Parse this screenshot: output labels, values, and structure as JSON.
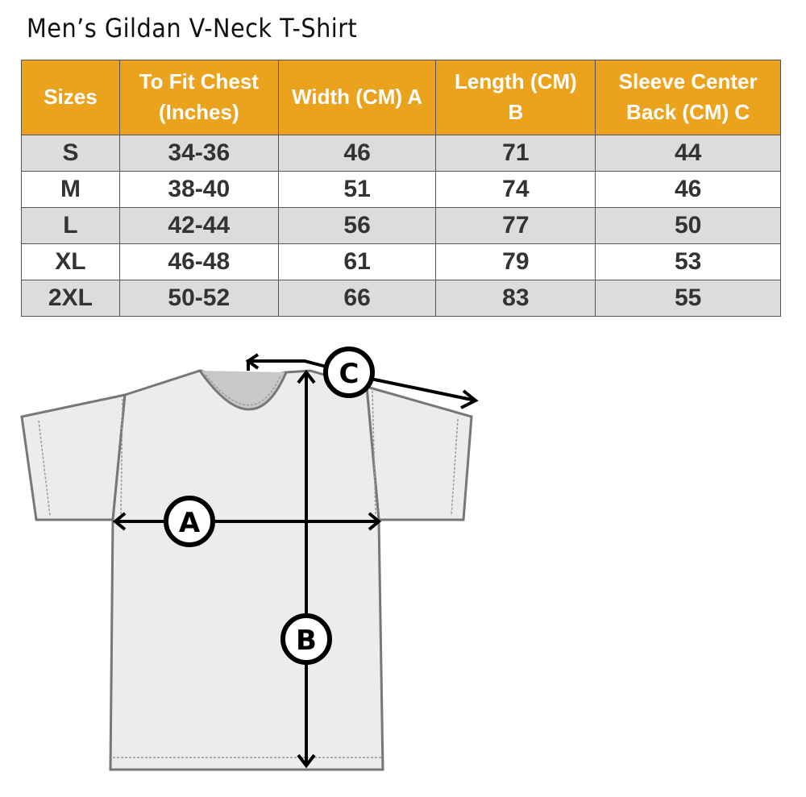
{
  "title": "Men’s Gildan V-Neck T-Shirt",
  "colors": {
    "header": "#eba21c",
    "stripe": "#dcdcdc"
  },
  "table": {
    "headers": [
      [
        "Sizes"
      ],
      [
        "To Fit Chest",
        "(Inches)"
      ],
      [
        "Width (CM) A"
      ],
      [
        "Length  (CM)",
        "B"
      ],
      [
        "Sleeve Center",
        "Back (CM) C"
      ]
    ],
    "rows": [
      [
        "S",
        "34-36",
        "46",
        "71",
        "44"
      ],
      [
        "M",
        "38-40",
        "51",
        "74",
        "46"
      ],
      [
        "L",
        "42-44",
        "56",
        "77",
        "50"
      ],
      [
        "XL",
        "46-48",
        "61",
        "79",
        "53"
      ],
      [
        "2XL",
        "50-52",
        "66",
        "83",
        "55"
      ]
    ]
  },
  "diagram": {
    "labels": [
      "A",
      "B",
      "C"
    ]
  }
}
